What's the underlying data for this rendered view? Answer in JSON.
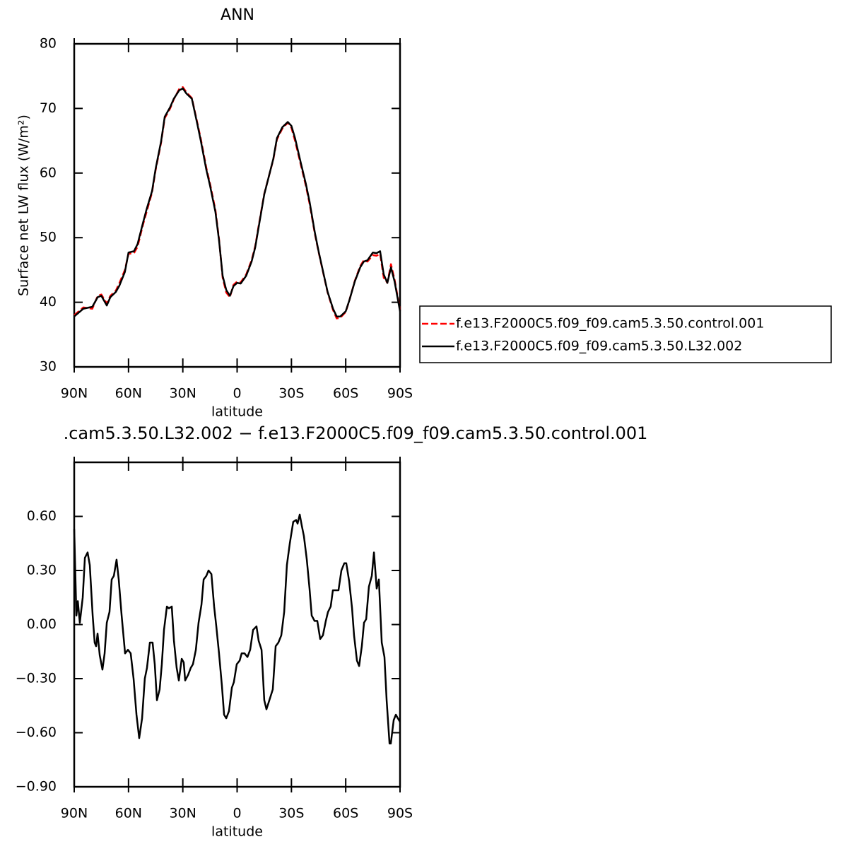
{
  "chart_data": [
    {
      "type": "line",
      "title": "ANN",
      "x_label": "latitude",
      "y_label": "Surface net LW flux (W/m²)",
      "xlim": [
        90,
        -90
      ],
      "xticks": [
        {
          "value": 90,
          "label": "90N"
        },
        {
          "value": 60,
          "label": "60N"
        },
        {
          "value": 30,
          "label": "30N"
        },
        0,
        {
          "value": -30,
          "label": "30S"
        },
        {
          "value": -60,
          "label": "60S"
        },
        {
          "value": -90,
          "label": "90S"
        }
      ],
      "ylim": [
        30,
        80
      ],
      "yticks": [
        30,
        40,
        50,
        60,
        70,
        80
      ],
      "legend": "outside right",
      "x": [
        90,
        85,
        80,
        77,
        75,
        72,
        70,
        67,
        65,
        62,
        60,
        57,
        55,
        52,
        50,
        47,
        45,
        42,
        40,
        37,
        35,
        32,
        30,
        28,
        25,
        22,
        20,
        17,
        15,
        12,
        10,
        8,
        6,
        4,
        2,
        0,
        -2,
        -5,
        -8,
        -10,
        -12,
        -15,
        -18,
        -20,
        -22,
        -25,
        -28,
        -30,
        -32,
        -35,
        -38,
        -40,
        -43,
        -45,
        -48,
        -50,
        -53,
        -55,
        -57,
        -60,
        -62,
        -65,
        -68,
        -70,
        -72,
        -75,
        -77,
        -79,
        -81,
        -83,
        -85,
        -87,
        -90
      ],
      "series": [
        {
          "name": "f.e13.F2000C5.f09_f09.cam5.3.50.control.001",
          "color": "#ff0000",
          "dashed": true,
          "values": [
            38.0,
            39.2,
            39.0,
            41.0,
            41.2,
            39.8,
            41.0,
            41.8,
            43.0,
            45.0,
            47.5,
            47.6,
            48.6,
            52.0,
            54.0,
            57.0,
            60.5,
            64.7,
            68.5,
            70.0,
            71.4,
            73.0,
            73.3,
            72.5,
            71.6,
            67.8,
            65.2,
            60.8,
            58.4,
            54.3,
            49.8,
            43.8,
            41.5,
            40.8,
            42.7,
            43.2,
            43.1,
            44.3,
            46.5,
            48.7,
            52.0,
            56.8,
            60.0,
            62.1,
            65.2,
            66.9,
            67.8,
            67.0,
            65.0,
            61.5,
            58.0,
            55.3,
            50.5,
            47.8,
            44.0,
            41.5,
            38.8,
            37.5,
            37.6,
            38.5,
            40.3,
            43.3,
            45.6,
            46.5,
            46.3,
            47.3,
            47.2,
            47.5,
            43.8,
            43.0,
            45.9,
            43.5,
            38.8
          ]
        },
        {
          "name": "f.e13.F2000C5.f09_f09.cam5.3.50.L32.002",
          "color": "#000000",
          "dashed": false,
          "values": [
            37.8,
            39.0,
            39.3,
            40.8,
            41.0,
            39.5,
            40.8,
            41.6,
            42.6,
            44.7,
            47.7,
            47.9,
            49.0,
            52.3,
            54.4,
            57.2,
            60.7,
            64.9,
            68.7,
            70.2,
            71.5,
            72.8,
            73.1,
            72.3,
            71.5,
            67.6,
            64.9,
            60.5,
            58.1,
            54.0,
            49.6,
            44.1,
            41.9,
            41.0,
            42.5,
            43.0,
            42.9,
            44.1,
            46.3,
            48.5,
            51.8,
            56.7,
            60.0,
            62.2,
            65.4,
            67.1,
            67.9,
            67.3,
            65.4,
            61.8,
            58.3,
            55.6,
            50.7,
            47.9,
            44.1,
            41.6,
            39.0,
            37.8,
            37.8,
            38.6,
            40.3,
            43.2,
            45.4,
            46.3,
            46.5,
            47.7,
            47.6,
            47.9,
            44.3,
            43.0,
            45.4,
            43.2,
            38.6
          ]
        }
      ]
    },
    {
      "type": "line",
      "title": ".cam5.3.50.L32.002 − f.e13.F2000C5.f09_f09.cam5.3.50.control.001",
      "x_label": "latitude",
      "xlim": [
        90,
        -90
      ],
      "xticks": [
        {
          "value": 90,
          "label": "90N"
        },
        {
          "value": 60,
          "label": "60N"
        },
        {
          "value": 30,
          "label": "30N"
        },
        0,
        {
          "value": -30,
          "label": "30S"
        },
        {
          "value": -60,
          "label": "60S"
        },
        {
          "value": -90,
          "label": "90S"
        }
      ],
      "ylim": [
        -0.9,
        0.9
      ],
      "yticks": [
        {
          "value": -0.9,
          "label": "−0.90"
        },
        {
          "value": -0.6,
          "label": "−0.60"
        },
        {
          "value": -0.3,
          "label": "−0.30"
        },
        {
          "value": 0,
          "label": "0.00"
        },
        {
          "value": 0.3,
          "label": "0.30"
        },
        {
          "value": 0.6,
          "label": "0.60"
        }
      ],
      "color": "#000000",
      "x": [
        90,
        88.8,
        88.0,
        86.9,
        85.3,
        84.1,
        82.6,
        81.4,
        79.8,
        78.7,
        77.9,
        77.1,
        75.9,
        74.4,
        73.2,
        72.0,
        70.5,
        69.3,
        68.1,
        66.6,
        65.4,
        63.8,
        61.9,
        60.3,
        58.8,
        57.2,
        55.6,
        54.1,
        52.5,
        51.0,
        49.8,
        48.2,
        46.7,
        45.5,
        44.3,
        42.8,
        41.6,
        40.4,
        38.8,
        37.7,
        36.1,
        34.9,
        33.4,
        32.2,
        30.6,
        29.5,
        28.7,
        27.1,
        25.6,
        24.4,
        22.8,
        21.3,
        19.7,
        18.5,
        17.0,
        15.8,
        14.2,
        12.7,
        11.5,
        10.0,
        8.4,
        7.2,
        6.0,
        4.5,
        2.9,
        1.8,
        0.2,
        -1.4,
        -2.5,
        -4.1,
        -5.7,
        -7.2,
        -8.8,
        -10.7,
        -11.9,
        -13.5,
        -15.0,
        -16.2,
        -17.8,
        -19.7,
        -21.3,
        -22.8,
        -24.4,
        -26.0,
        -27.5,
        -29.1,
        -31.0,
        -32.6,
        -33.4,
        -34.6,
        -35.7,
        -36.9,
        -38.5,
        -40.0,
        -41.2,
        -42.8,
        -44.3,
        -45.9,
        -47.4,
        -49.0,
        -50.2,
        -51.7,
        -52.9,
        -54.5,
        -56.0,
        -57.6,
        -59.2,
        -60.3,
        -61.9,
        -63.5,
        -64.6,
        -66.2,
        -67.4,
        -68.9,
        -70.1,
        -71.3,
        -72.8,
        -74.4,
        -75.6,
        -77.1,
        -78.3,
        -79.9,
        -81.4,
        -82.6,
        -84.2,
        -84.9,
        -86.5,
        -87.7,
        -88.8,
        -90
      ],
      "values": [
        0.53,
        0.05,
        0.13,
        0.01,
        0.15,
        0.37,
        0.4,
        0.33,
        0.05,
        -0.1,
        -0.12,
        -0.05,
        -0.17,
        -0.25,
        -0.16,
        0.01,
        0.07,
        0.25,
        0.27,
        0.36,
        0.25,
        0.05,
        -0.16,
        -0.14,
        -0.16,
        -0.3,
        -0.5,
        -0.63,
        -0.52,
        -0.3,
        -0.24,
        -0.1,
        -0.1,
        -0.22,
        -0.42,
        -0.36,
        -0.22,
        -0.03,
        0.1,
        0.09,
        0.1,
        -0.09,
        -0.24,
        -0.31,
        -0.19,
        -0.21,
        -0.31,
        -0.28,
        -0.24,
        -0.22,
        -0.14,
        0.01,
        0.11,
        0.25,
        0.27,
        0.3,
        0.28,
        0.1,
        -0.01,
        -0.16,
        -0.34,
        -0.5,
        -0.52,
        -0.48,
        -0.35,
        -0.32,
        -0.22,
        -0.2,
        -0.16,
        -0.16,
        -0.18,
        -0.14,
        -0.03,
        -0.01,
        -0.09,
        -0.14,
        -0.42,
        -0.47,
        -0.42,
        -0.36,
        -0.12,
        -0.1,
        -0.06,
        0.07,
        0.33,
        0.45,
        0.57,
        0.58,
        0.56,
        0.61,
        0.55,
        0.49,
        0.36,
        0.2,
        0.05,
        0.02,
        0.02,
        -0.08,
        -0.06,
        0.02,
        0.07,
        0.1,
        0.19,
        0.19,
        0.19,
        0.3,
        0.34,
        0.34,
        0.24,
        0.09,
        -0.06,
        -0.2,
        -0.23,
        -0.12,
        0.01,
        0.03,
        0.21,
        0.27,
        0.4,
        0.2,
        0.25,
        -0.1,
        -0.18,
        -0.42,
        -0.66,
        -0.66,
        -0.53,
        -0.5,
        -0.52,
        -0.54
      ]
    }
  ]
}
